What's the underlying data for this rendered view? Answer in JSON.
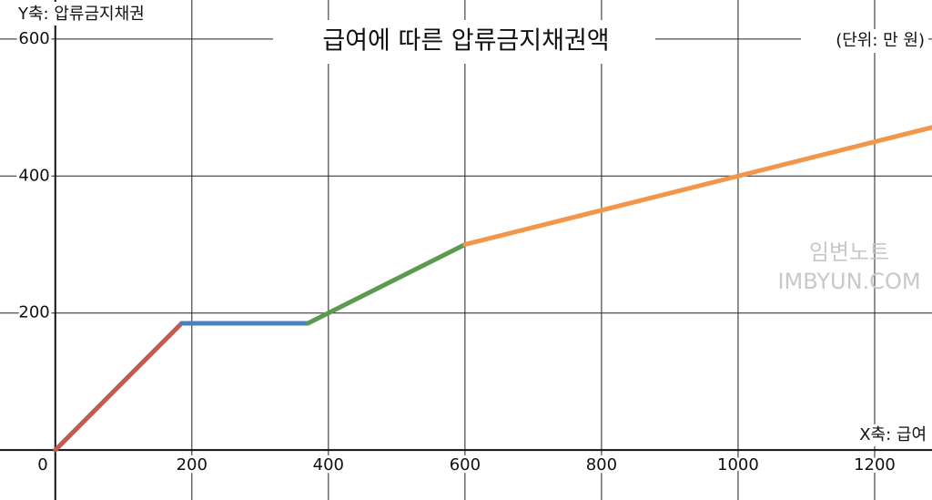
{
  "chart_data": {
    "type": "line",
    "title": "급여에 따른 압류금지채권액",
    "y_label": "Y축: 압류금지채권",
    "x_label": "X축: 급여",
    "unit": "(단위: 만 원)",
    "watermark": [
      "임변노트",
      "IMBYUN.COM"
    ],
    "xlim": [
      -81,
      1284
    ],
    "ylim": [
      -73,
      657
    ],
    "xticks": [
      0,
      200,
      400,
      600,
      800,
      1000,
      1200
    ],
    "yticks": [
      200,
      400,
      600
    ],
    "grid": true,
    "series": [
      {
        "color": "#c35a50",
        "x": [
          0,
          185
        ],
        "values": [
          0,
          185
        ]
      },
      {
        "color": "#4a7fc0",
        "x": [
          185,
          370
        ],
        "values": [
          185,
          185
        ]
      },
      {
        "color": "#5b9a50",
        "x": [
          370,
          600
        ],
        "values": [
          185,
          300
        ]
      },
      {
        "color": "#f1964a",
        "x": [
          600,
          1284
        ],
        "values": [
          300,
          471
        ]
      }
    ]
  }
}
